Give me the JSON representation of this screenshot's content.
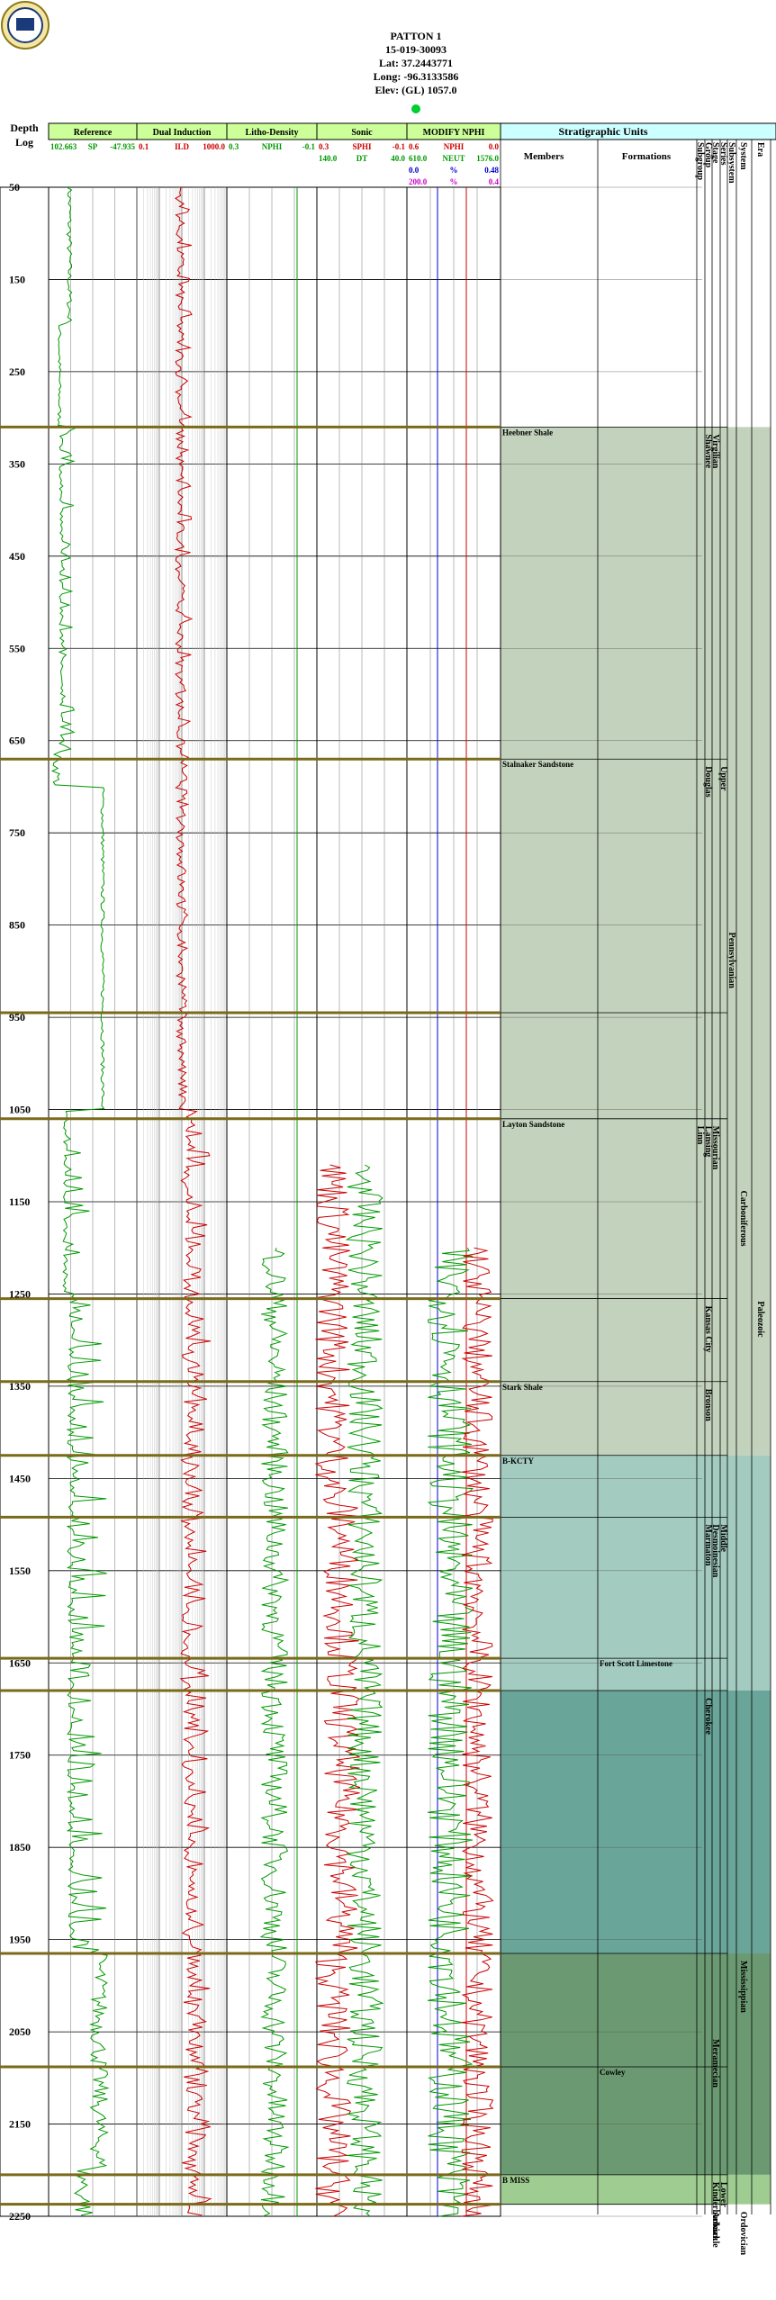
{
  "well": {
    "name": "PATTON 1",
    "api": "15-019-30093",
    "lat": "Lat: 37.2443771",
    "long": "Long: -96.3133586",
    "elev": "Elev: (GL) 1057.0"
  },
  "colors": {
    "header_bg": "#ccff99",
    "strat_header_bg": "#ccffff",
    "sp": "#009900",
    "ild": "#cc0000",
    "npnhi": "#009900",
    "dt": "#009900",
    "neut": "#cc0000",
    "blue": "#0000cc",
    "gamma_mag": "#cc00cc",
    "formation_line": "#7a6a1a",
    "upper_fill": "#c3d2bc",
    "kc_fill": "#a3cbc0",
    "cherokee_fill": "#6aa59a",
    "miss_fill": "#6b9a72",
    "lower_miss_fill": "#9fcc91"
  },
  "depth_header": {
    "line1": "Depth",
    "line2": "Log"
  },
  "tracks": [
    {
      "title": "Reference",
      "curves": [
        {
          "left": "102.663",
          "name": "SP",
          "right": "-47.935",
          "color": "#009900"
        }
      ]
    },
    {
      "title": "Dual Induction",
      "curves": [
        {
          "left": "0.1",
          "name": "ILD",
          "right": "1000.0",
          "color": "#cc0000"
        }
      ]
    },
    {
      "title": "Litho-Density",
      "curves": [
        {
          "left": "0.3",
          "name": "NPHI",
          "right": "-0.1",
          "color": "#009900"
        }
      ]
    },
    {
      "title": "Sonic",
      "curves": [
        {
          "left": "0.3",
          "name": "SPHI",
          "right": "-0.1",
          "color": "#cc0000"
        },
        {
          "left": "140.0",
          "name": "DT",
          "right": "40.0",
          "color": "#009900"
        }
      ]
    },
    {
      "title": "MODIFY NPHI",
      "curves": [
        {
          "left": "0.6",
          "name": "NPHI",
          "right": "0.0",
          "color": "#cc0000"
        },
        {
          "left": "610.0",
          "name": "NEUT",
          "right": "1576.0",
          "color": "#009900"
        },
        {
          "left": "0.0",
          "name": "%",
          "right": "0.48",
          "color": "#0000cc"
        },
        {
          "left": "200.0",
          "name": "%",
          "right": "0.4",
          "color": "#cc00cc"
        }
      ]
    }
  ],
  "strat": {
    "title": "Stratigraphic Units",
    "members_header": "Members",
    "formations_header": "Formations",
    "vertical_headers": [
      "Subgroup",
      "Group",
      "Stage",
      "Series",
      "Subsystem",
      "System",
      "Era"
    ]
  },
  "chart_data": {
    "type": "well_log",
    "depth_range": [
      50,
      2250
    ],
    "depth_ticks": [
      50,
      150,
      250,
      350,
      450,
      550,
      650,
      750,
      850,
      950,
      1050,
      1150,
      1250,
      1350,
      1450,
      1550,
      1650,
      1750,
      1850,
      1950,
      2050,
      2150,
      2250
    ],
    "formation_tops": [
      {
        "depth": 310,
        "label": "Heebner Shale"
      },
      {
        "depth": 670,
        "label": "Stalnaker Sandstone"
      },
      {
        "depth": 945,
        "label": ""
      },
      {
        "depth": 1060,
        "label": "Layton Sandstone"
      },
      {
        "depth": 1255,
        "label": ""
      },
      {
        "depth": 1345,
        "label": "Stark Shale"
      },
      {
        "depth": 1425,
        "label": "B-KCTY"
      },
      {
        "depth": 1492,
        "label": ""
      },
      {
        "depth": 1645,
        "label": "Fort Scott Limestone",
        "column": "formations"
      },
      {
        "depth": 1680,
        "label": ""
      },
      {
        "depth": 1965,
        "label": ""
      },
      {
        "depth": 2088,
        "label": "Cowley",
        "column": "formations"
      },
      {
        "depth": 2205,
        "label": "B MISS"
      },
      {
        "depth": 2237,
        "label": ""
      }
    ],
    "vertical_units": [
      {
        "col": "group",
        "label": "Shawnee",
        "top": 310,
        "bottom": 670
      },
      {
        "col": "group",
        "label": "Douglas",
        "top": 670,
        "bottom": 945
      },
      {
        "col": "subgroup",
        "label": "Linn",
        "top": 1060,
        "bottom": 1130
      },
      {
        "col": "group",
        "label": "Lansing",
        "top": 1060,
        "bottom": 1255
      },
      {
        "col": "group",
        "label": "Kansas City",
        "top": 1255,
        "bottom": 1425
      },
      {
        "col": "group",
        "label": "Bronson",
        "top": 1345,
        "bottom": 1425
      },
      {
        "col": "group",
        "label": "Marmaton",
        "top": 1492,
        "bottom": 1680
      },
      {
        "col": "group",
        "label": "Cherokee",
        "top": 1680,
        "bottom": 1965
      },
      {
        "col": "stage",
        "label": "Virgilian",
        "top": 310,
        "bottom": 945
      },
      {
        "col": "stage",
        "label": "Missourian",
        "top": 1060,
        "bottom": 1425
      },
      {
        "col": "stage",
        "label": "Desmoinesian",
        "top": 1492,
        "bottom": 1680
      },
      {
        "col": "stage",
        "label": "Meramecian",
        "top": 2050,
        "bottom": 2205
      },
      {
        "col": "stage",
        "label": "Kinderhookian",
        "top": 2205,
        "bottom": 2237
      },
      {
        "col": "stage",
        "label": "Arbuckle",
        "top": 2237,
        "bottom": 2265
      },
      {
        "col": "series",
        "label": "Upper",
        "top": 670,
        "bottom": 1060
      },
      {
        "col": "series",
        "label": "Middle",
        "top": 1492,
        "bottom": 1965
      },
      {
        "col": "series",
        "label": "Lower",
        "top": 2205,
        "bottom": 2237
      },
      {
        "col": "subsystem",
        "label": "Pennsylvanian",
        "top": 850,
        "bottom": 1100
      },
      {
        "col": "system",
        "label": "Carboniferous",
        "top": 1130,
        "bottom": 1440
      },
      {
        "col": "system",
        "label": "Mississippian",
        "top": 1965,
        "bottom": 2205
      },
      {
        "col": "system",
        "label": "Ordovician",
        "top": 2237,
        "bottom": 2265
      },
      {
        "col": "era",
        "label": "Paleozoic",
        "top": 1250,
        "bottom": 1450
      }
    ],
    "unit_fills": [
      {
        "top": 310,
        "bottom": 1425,
        "color": "#c3d2bc"
      },
      {
        "top": 1425,
        "bottom": 1680,
        "color": "#a3cbc0"
      },
      {
        "top": 1680,
        "bottom": 1965,
        "color": "#6aa59a"
      },
      {
        "top": 1965,
        "bottom": 2205,
        "color": "#6b9a72"
      },
      {
        "top": 2205,
        "bottom": 2237,
        "color": "#9fcc91"
      }
    ]
  }
}
